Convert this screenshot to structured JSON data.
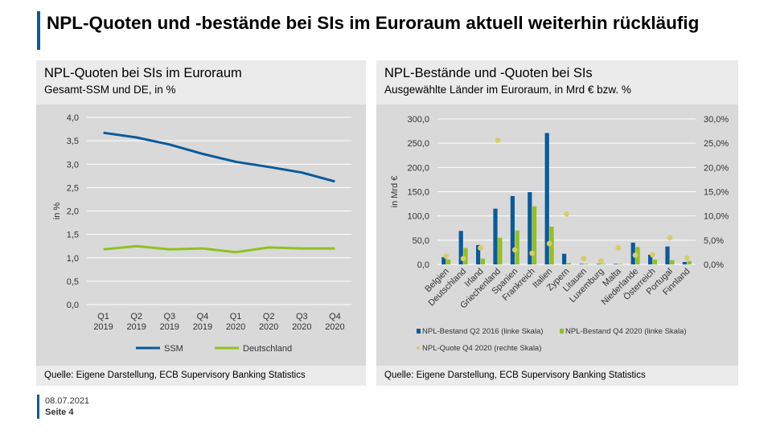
{
  "slide": {
    "title": "NPL-Quoten und -bestände bei SIs im Euroraum aktuell weiterhin rückläufig",
    "date": "08.07.2021",
    "page": "Seite 4",
    "accent_color": "#0a5a9c"
  },
  "left_panel": {
    "title": "NPL-Quoten bei SIs im Euroraum",
    "subtitle": "Gesamt-SSM und DE, in %",
    "source": "Quelle: Eigene Darstellung, ECB Supervisory Banking Statistics"
  },
  "right_panel": {
    "title": "NPL-Bestände und -Quoten bei SIs",
    "subtitle": "Ausgewählte  Länder im Euroraum,  in Mrd € bzw.  %",
    "source": "Quelle: Eigene Darstellung, ECB Supervisory Banking Statistics"
  },
  "chart_data": [
    {
      "type": "line",
      "categories": [
        [
          "Q1",
          "2019"
        ],
        [
          "Q2",
          "2019"
        ],
        [
          "Q3",
          "2019"
        ],
        [
          "Q4",
          "2019"
        ],
        [
          "Q1",
          "2020"
        ],
        [
          "Q2",
          "2020"
        ],
        [
          "Q3",
          "2020"
        ],
        [
          "Q4",
          "2020"
        ]
      ],
      "ylabel": "in %",
      "ylim": [
        0,
        4
      ],
      "yticks": [
        "0,0",
        "0,5",
        "1,0",
        "1,5",
        "2,0",
        "2,5",
        "3,0",
        "3,5",
        "4,0"
      ],
      "grid": true,
      "legend_position": "bottom",
      "series": [
        {
          "name": "SSM",
          "color": "#0a5a9c",
          "values": [
            3.67,
            3.57,
            3.42,
            3.22,
            3.05,
            2.94,
            2.82,
            2.63
          ]
        },
        {
          "name": "Deutschland",
          "color": "#92c020",
          "values": [
            1.18,
            1.25,
            1.18,
            1.2,
            1.12,
            1.22,
            1.2,
            1.2
          ]
        }
      ]
    },
    {
      "type": "bar",
      "categories": [
        "Belgien",
        "Deutschland",
        "Irland",
        "Griechenland",
        "Spanien",
        "Frankreich",
        "Italien",
        "Zypern",
        "Litauen",
        "Luxemburg",
        "Malta",
        "Niederlande",
        "Österreich",
        "Portugal",
        "Finnland"
      ],
      "ylabel": "in Mrd €",
      "ylim": [
        0,
        300
      ],
      "yticks": [
        "0,0",
        "50,0",
        "100,0",
        "150,0",
        "200,0",
        "250,0",
        "300,0"
      ],
      "y2lim": [
        0,
        30
      ],
      "y2ticks": [
        "0,0%",
        "5,0%",
        "10,0%",
        "15,0%",
        "20,0%",
        "25,0%",
        "30,0%"
      ],
      "grid": true,
      "legend_position": "bottom",
      "series": [
        {
          "name": "NPL-Bestand Q2 2016 (linke Skala)",
          "color": "#0a5a9c",
          "axis": "left",
          "values": [
            15,
            69,
            40,
            115,
            141,
            149,
            271,
            22,
            1,
            1,
            1,
            45,
            20,
            37,
            5
          ]
        },
        {
          "name": "NPL-Bestand Q4 2020 (linke Skala)",
          "color": "#92c020",
          "axis": "left",
          "values": [
            10,
            34,
            12,
            55,
            70,
            120,
            78,
            3,
            1,
            1,
            1,
            36,
            10,
            9,
            7
          ]
        },
        {
          "name": "NPL-Quote Q4 2020 (rechte Skala)",
          "color": "#d6cc68",
          "axis": "right",
          "type": "scatter",
          "values": [
            1.7,
            1.2,
            3.4,
            25.6,
            3.0,
            2.3,
            4.3,
            10.4,
            1.2,
            0.7,
            3.4,
            1.9,
            2.0,
            5.5,
            1.3
          ]
        }
      ]
    }
  ]
}
